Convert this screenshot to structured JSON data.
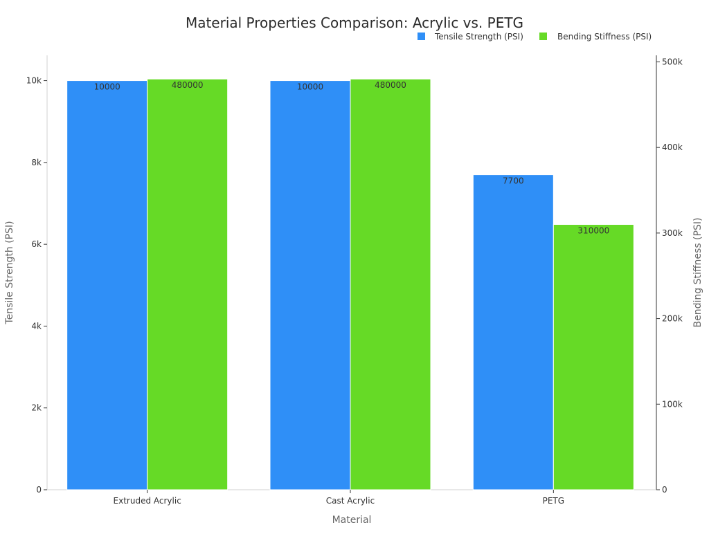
{
  "chart_data": {
    "type": "bar",
    "title": "Material Properties Comparison: Acrylic vs. PETG",
    "xlabel": "Material",
    "ylabel_left": "Tensile Strength (PSI)",
    "ylabel_right": "Bending Stiffness (PSI)",
    "categories": [
      "Extruded Acrylic",
      "Cast Acrylic",
      "PETG"
    ],
    "series": [
      {
        "name": "Tensile Strength (PSI)",
        "axis": "left",
        "color": "#2f8ff7",
        "values": [
          10000,
          10000,
          7700
        ],
        "labels": [
          "10000",
          "10000",
          "7700"
        ]
      },
      {
        "name": "Bending Stiffness (PSI)",
        "axis": "right",
        "color": "#66da26",
        "values": [
          480000,
          480000,
          310000
        ],
        "labels": [
          "480000",
          "480000",
          "310000"
        ]
      }
    ],
    "ylim_left": [
      0,
      10500
    ],
    "ylim_right": [
      0,
      502000
    ],
    "yticks_left": [
      {
        "value": 0,
        "label": "0"
      },
      {
        "value": 2000,
        "label": "2k"
      },
      {
        "value": 4000,
        "label": "4k"
      },
      {
        "value": 6000,
        "label": "6k"
      },
      {
        "value": 8000,
        "label": "8k"
      },
      {
        "value": 10000,
        "label": "10k"
      }
    ],
    "yticks_right": [
      {
        "value": 0,
        "label": "0"
      },
      {
        "value": 100000,
        "label": "100k"
      },
      {
        "value": 200000,
        "label": "200k"
      },
      {
        "value": 300000,
        "label": "300k"
      },
      {
        "value": 400000,
        "label": "400k"
      },
      {
        "value": 500000,
        "label": "500k"
      }
    ],
    "legend_position": "top-right",
    "grid": false
  }
}
